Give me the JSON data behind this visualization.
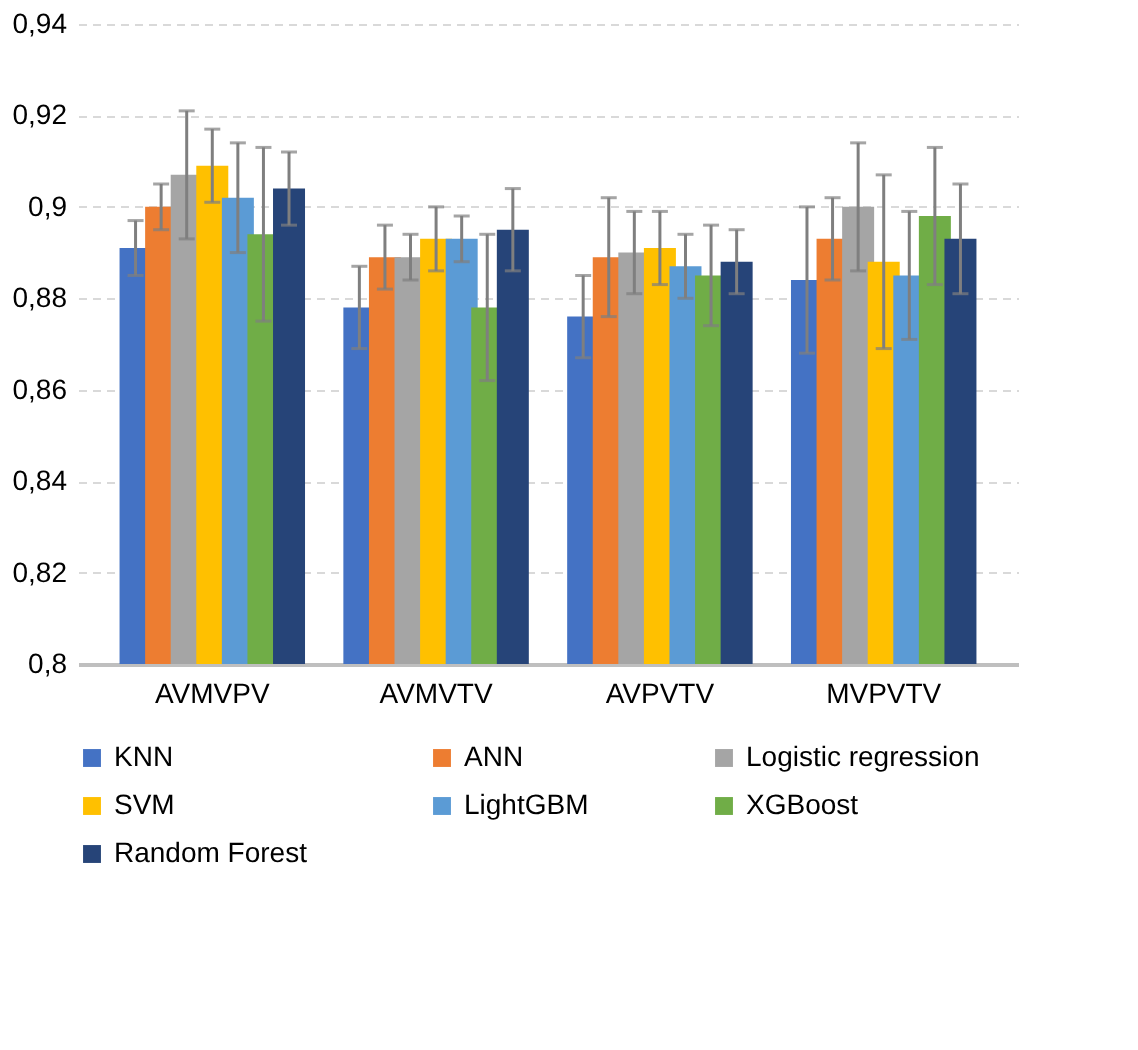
{
  "chart_data": {
    "type": "bar",
    "categories": [
      "AVMVPV",
      "AVMVTV",
      "AVPVTV",
      "MVPVTV"
    ],
    "series": [
      {
        "name": "KNN",
        "color": "#4472c4",
        "values": [
          0.891,
          0.878,
          0.876,
          0.884
        ],
        "errors": [
          0.006,
          0.009,
          0.009,
          0.016
        ]
      },
      {
        "name": "ANN",
        "color": "#ed7d31",
        "values": [
          0.9,
          0.889,
          0.889,
          0.893
        ],
        "errors": [
          0.005,
          0.007,
          0.013,
          0.009
        ]
      },
      {
        "name": "Logistic regression",
        "color": "#a5a5a5",
        "values": [
          0.907,
          0.889,
          0.89,
          0.9
        ],
        "errors": [
          0.014,
          0.005,
          0.009,
          0.014
        ]
      },
      {
        "name": "SVM",
        "color": "#ffc000",
        "values": [
          0.909,
          0.893,
          0.891,
          0.888
        ],
        "errors": [
          0.008,
          0.007,
          0.008,
          0.019
        ]
      },
      {
        "name": "LightGBM",
        "color": "#5b9bd5",
        "values": [
          0.902,
          0.893,
          0.887,
          0.885
        ],
        "errors": [
          0.012,
          0.005,
          0.007,
          0.014
        ]
      },
      {
        "name": "XGBoost",
        "color": "#70ad47",
        "values": [
          0.894,
          0.878,
          0.885,
          0.898
        ],
        "errors": [
          0.019,
          0.016,
          0.011,
          0.015
        ]
      },
      {
        "name": "Random Forest",
        "color": "#264478",
        "values": [
          0.904,
          0.895,
          0.888,
          0.893
        ],
        "errors": [
          0.008,
          0.009,
          0.007,
          0.012
        ]
      }
    ],
    "ylim": [
      0.8,
      0.94
    ],
    "yticks": [
      {
        "value": 0.8,
        "label": "0,8"
      },
      {
        "value": 0.82,
        "label": "0,82"
      },
      {
        "value": 0.84,
        "label": "0,84"
      },
      {
        "value": 0.86,
        "label": "0,86"
      },
      {
        "value": 0.88,
        "label": "0,88"
      },
      {
        "value": 0.9,
        "label": "0,9"
      },
      {
        "value": 0.92,
        "label": "0,92"
      },
      {
        "value": 0.94,
        "label": "0,94"
      }
    ],
    "grid": "y",
    "legend": "bottom"
  }
}
